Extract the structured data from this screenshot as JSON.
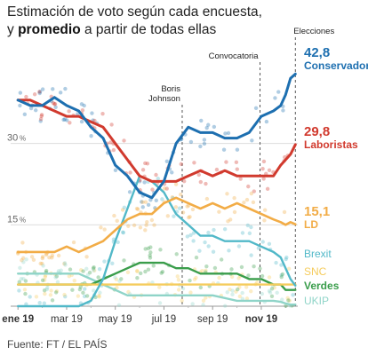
{
  "title": {
    "line1": "Estimación de voto según cada encuesta,",
    "line2_prefix": "y",
    "line2_bold": "promedio",
    "line2_suffix": "a partir de todas ellas"
  },
  "source": "Fuente: FT / EL PAÍS",
  "chart_data": {
    "type": "line",
    "x_ticks": [
      "ene 19",
      "mar 19",
      "may 19",
      "jul 19",
      "sep 19",
      "nov 19"
    ],
    "y_ticks": [
      {
        "value": 15,
        "label": "15"
      },
      {
        "value": 30,
        "label": "30"
      }
    ],
    "y_unit": "%",
    "ylim": [
      0,
      45
    ],
    "x_range_months": [
      -0.3,
      11.5
    ],
    "grid": true,
    "annotations": [
      {
        "label_lines": [
          "Boris",
          "Johnson"
        ],
        "x": 6.75
      },
      {
        "label_lines": [
          "Convocatoria"
        ],
        "x": 9.95
      },
      {
        "label_lines": [
          "Elecciones"
        ],
        "x": 11.4
      }
    ],
    "series": [
      {
        "name": "Conservador",
        "final_value": "42,8",
        "color": "#1d6fb0",
        "x": [
          0,
          0.5,
          1,
          1.5,
          2,
          2.5,
          3,
          3.5,
          4,
          4.5,
          5,
          5.5,
          6,
          6.5,
          7,
          7.5,
          8,
          8.5,
          9,
          9.5,
          10,
          10.5,
          10.8,
          11,
          11.2,
          11.4
        ],
        "values": [
          38,
          37,
          37,
          38.5,
          37,
          36,
          33,
          31,
          26,
          24,
          21,
          20,
          23,
          30,
          33,
          32,
          32,
          31,
          31,
          32,
          35,
          36,
          37,
          39,
          42,
          42.8
        ]
      },
      {
        "name": "Laboristas",
        "final_value": "29,8",
        "color": "#d13a2e",
        "x": [
          0,
          0.5,
          1,
          1.5,
          2,
          2.5,
          3,
          3.5,
          4,
          4.5,
          5,
          5.5,
          6,
          6.5,
          7,
          7.5,
          8,
          8.5,
          9,
          9.5,
          10,
          10.5,
          10.8,
          11,
          11.2,
          11.4
        ],
        "values": [
          38,
          38,
          37,
          36,
          35,
          35,
          34,
          33,
          30,
          27,
          24,
          23,
          23,
          23,
          24,
          25,
          24,
          25,
          24,
          24,
          24,
          24,
          26,
          27,
          28,
          29.8
        ]
      },
      {
        "name": "LD",
        "final_value": "15,1",
        "color": "#f2ac46",
        "x": [
          0,
          0.5,
          1,
          1.5,
          2,
          2.5,
          3,
          3.5,
          4,
          4.5,
          5,
          5.5,
          6,
          6.5,
          7,
          7.5,
          8,
          8.5,
          9,
          9.5,
          10,
          10.5,
          10.8,
          11,
          11.2,
          11.4
        ],
        "values": [
          10,
          10,
          10,
          10,
          11,
          10,
          11,
          12,
          14,
          16,
          17,
          17,
          19,
          20,
          19,
          18,
          19,
          18,
          19,
          18,
          17,
          16,
          15.5,
          15,
          15.5,
          15.1
        ]
      },
      {
        "name": "Brexit",
        "final_value": "",
        "color": "#51b8c8",
        "x": [
          0,
          0.5,
          1,
          1.5,
          2,
          2.5,
          3,
          3.5,
          4,
          4.5,
          5,
          5.5,
          6,
          6.5,
          7,
          7.5,
          8,
          8.5,
          9,
          9.5,
          10,
          10.5,
          10.8,
          11,
          11.2,
          11.4
        ],
        "values": [
          0,
          0,
          0,
          0,
          0,
          0,
          1,
          5,
          12,
          18,
          24,
          23,
          21,
          17,
          15,
          13,
          13,
          12,
          12,
          12,
          11,
          10,
          9,
          7,
          5,
          3.8
        ]
      },
      {
        "name": "SNC",
        "final_value": "",
        "color": "#f5cc5d",
        "x": [
          0,
          0.5,
          1,
          1.5,
          2,
          2.5,
          3,
          3.5,
          4,
          4.5,
          5,
          5.5,
          6,
          6.5,
          7,
          7.5,
          8,
          8.5,
          9,
          9.5,
          10,
          10.5,
          10.8,
          11,
          11.2,
          11.4
        ],
        "values": [
          4,
          4,
          4,
          4,
          4,
          4,
          4,
          4,
          4,
          4,
          4,
          4,
          4,
          4,
          4,
          4,
          4,
          4,
          4,
          4,
          4,
          4,
          4,
          4,
          4,
          4
        ]
      },
      {
        "name": "Verdes",
        "final_value": "",
        "color": "#3a9d4b",
        "x": [
          0,
          0.5,
          1,
          1.5,
          2,
          2.5,
          3,
          3.5,
          4,
          4.5,
          5,
          5.5,
          6,
          6.5,
          7,
          7.5,
          8,
          8.5,
          9,
          9.5,
          10,
          10.5,
          10.8,
          11,
          11.2,
          11.4
        ],
        "values": [
          4,
          4,
          4,
          4,
          4,
          4,
          4,
          5,
          6,
          7,
          8,
          8,
          8,
          7,
          7,
          6,
          6,
          6,
          6,
          5,
          5,
          4,
          4,
          3,
          3,
          3
        ]
      },
      {
        "name": "UKIP",
        "final_value": "",
        "color": "#8fd4c8",
        "x": [
          0,
          0.5,
          1,
          1.5,
          2,
          2.5,
          3,
          3.5,
          4,
          4.5,
          5,
          5.5,
          6,
          6.5,
          7,
          7.5,
          8,
          8.5,
          9,
          9.5,
          10,
          10.5,
          10.8,
          11,
          11.2,
          11.4
        ],
        "values": [
          6,
          6,
          6,
          6,
          6,
          6,
          5,
          4,
          3,
          2,
          2,
          2,
          2,
          2,
          2,
          2,
          2,
          1.5,
          1,
          1,
          1,
          1,
          0.8,
          0.5,
          0.3,
          0.3
        ]
      }
    ]
  }
}
